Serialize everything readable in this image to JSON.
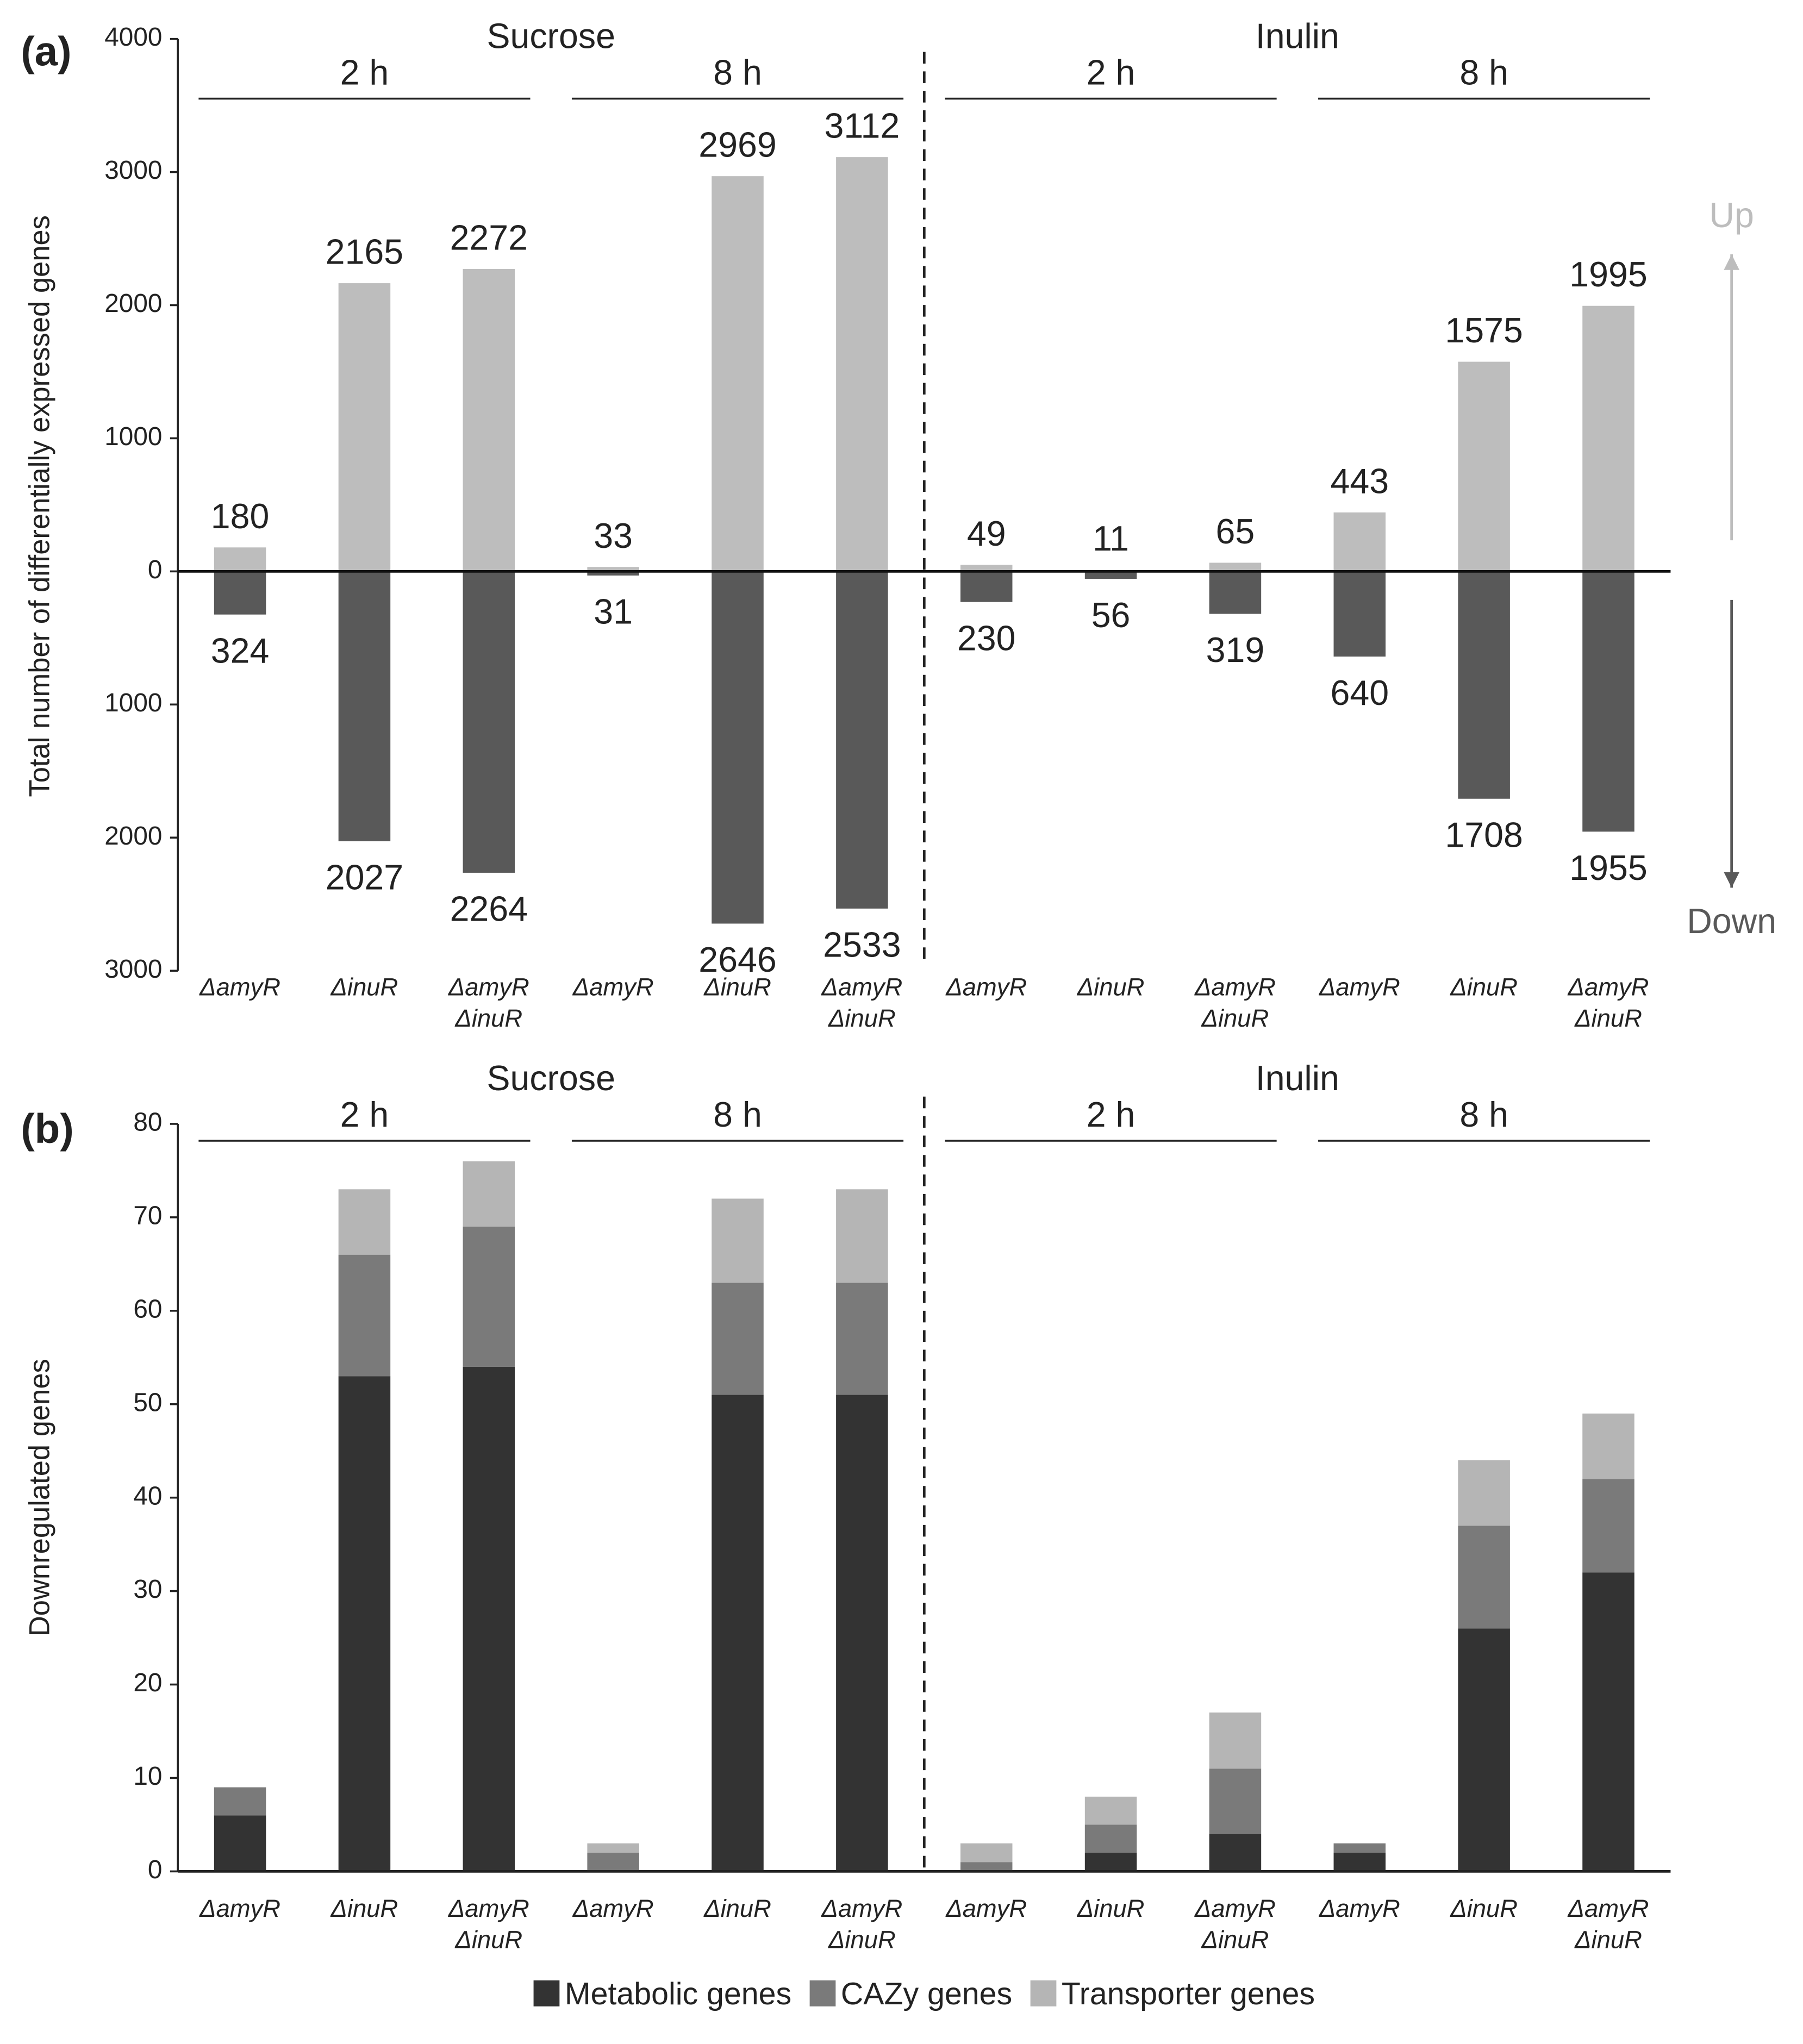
{
  "chart_data": [
    {
      "type": "bar",
      "panel": "(a)",
      "y_label": "Total number of differentially expressed genes",
      "groups": [
        {
          "label": "Sucrose",
          "subgroups": [
            "2 h",
            "8 h"
          ]
        },
        {
          "label": "Inulin",
          "subgroups": [
            "2 h",
            "8 h"
          ]
        }
      ],
      "categories": [
        [
          "ΔamyR"
        ],
        [
          "ΔinuR"
        ],
        [
          "ΔamyR",
          "ΔinuR"
        ],
        [
          "ΔamyR"
        ],
        [
          "ΔinuR"
        ],
        [
          "ΔamyR",
          "ΔinuR"
        ],
        [
          "ΔamyR"
        ],
        [
          "ΔinuR"
        ],
        [
          "ΔamyR",
          "ΔinuR"
        ],
        [
          "ΔamyR"
        ],
        [
          "ΔinuR"
        ],
        [
          "ΔamyR",
          "ΔinuR"
        ]
      ],
      "series": [
        {
          "name": "Up",
          "color": "#bdbdbd",
          "values": [
            180,
            2165,
            2272,
            33,
            2969,
            3112,
            49,
            11,
            65,
            443,
            1575,
            1995
          ]
        },
        {
          "name": "Down",
          "color": "#595959",
          "values": [
            -324,
            -2027,
            -2264,
            -31,
            -2646,
            -2533,
            -230,
            -56,
            -319,
            -640,
            -1708,
            -1955
          ],
          "value_labels": [
            "324",
            "2027",
            "2264",
            "31",
            "2646",
            "2533",
            "230",
            "56",
            "319",
            "640",
            "1708",
            "1955"
          ]
        }
      ],
      "ylim": [
        -3000,
        4000
      ],
      "yticks": [
        {
          "value": -3000,
          "label": "3000"
        },
        {
          "value": -2000,
          "label": "2000"
        },
        {
          "value": -1000,
          "label": "1000"
        },
        0,
        1000,
        2000,
        3000,
        4000
      ]
    },
    {
      "type": "stacked_bar",
      "panel": "(b)",
      "y_label": "Downregulated genes",
      "groups": [
        {
          "label": "Sucrose",
          "subgroups": [
            "2 h",
            "8 h"
          ]
        },
        {
          "label": "Inulin",
          "subgroups": [
            "2 h",
            "8 h"
          ]
        }
      ],
      "categories": [
        [
          "ΔamyR"
        ],
        [
          "ΔinuR"
        ],
        [
          "ΔamyR",
          "ΔinuR"
        ],
        [
          "ΔamyR"
        ],
        [
          "ΔinuR"
        ],
        [
          "ΔamyR",
          "ΔinuR"
        ],
        [
          "ΔamyR"
        ],
        [
          "ΔinuR"
        ],
        [
          "ΔamyR",
          "ΔinuR"
        ],
        [
          "ΔamyR"
        ],
        [
          "ΔinuR"
        ],
        [
          "ΔamyR",
          "ΔinuR"
        ]
      ],
      "series": [
        {
          "name": "Metabolic genes",
          "color": "#333333",
          "values": [
            6,
            53,
            54,
            0,
            51,
            51,
            0,
            2,
            4,
            2,
            26,
            32
          ]
        },
        {
          "name": "CAZy genes",
          "color": "#7a7a7a",
          "values": [
            3,
            13,
            15,
            2,
            12,
            12,
            1,
            3,
            7,
            1,
            11,
            10
          ]
        },
        {
          "name": "Transporter genes",
          "color": "#b5b5b5",
          "values": [
            0,
            7,
            7,
            1,
            9,
            10,
            2,
            3,
            6,
            0,
            7,
            7
          ]
        }
      ],
      "ylim": [
        0,
        80
      ],
      "yticks": [
        0,
        10,
        20,
        30,
        40,
        50,
        60,
        70,
        80
      ],
      "legend": "bottom"
    }
  ]
}
